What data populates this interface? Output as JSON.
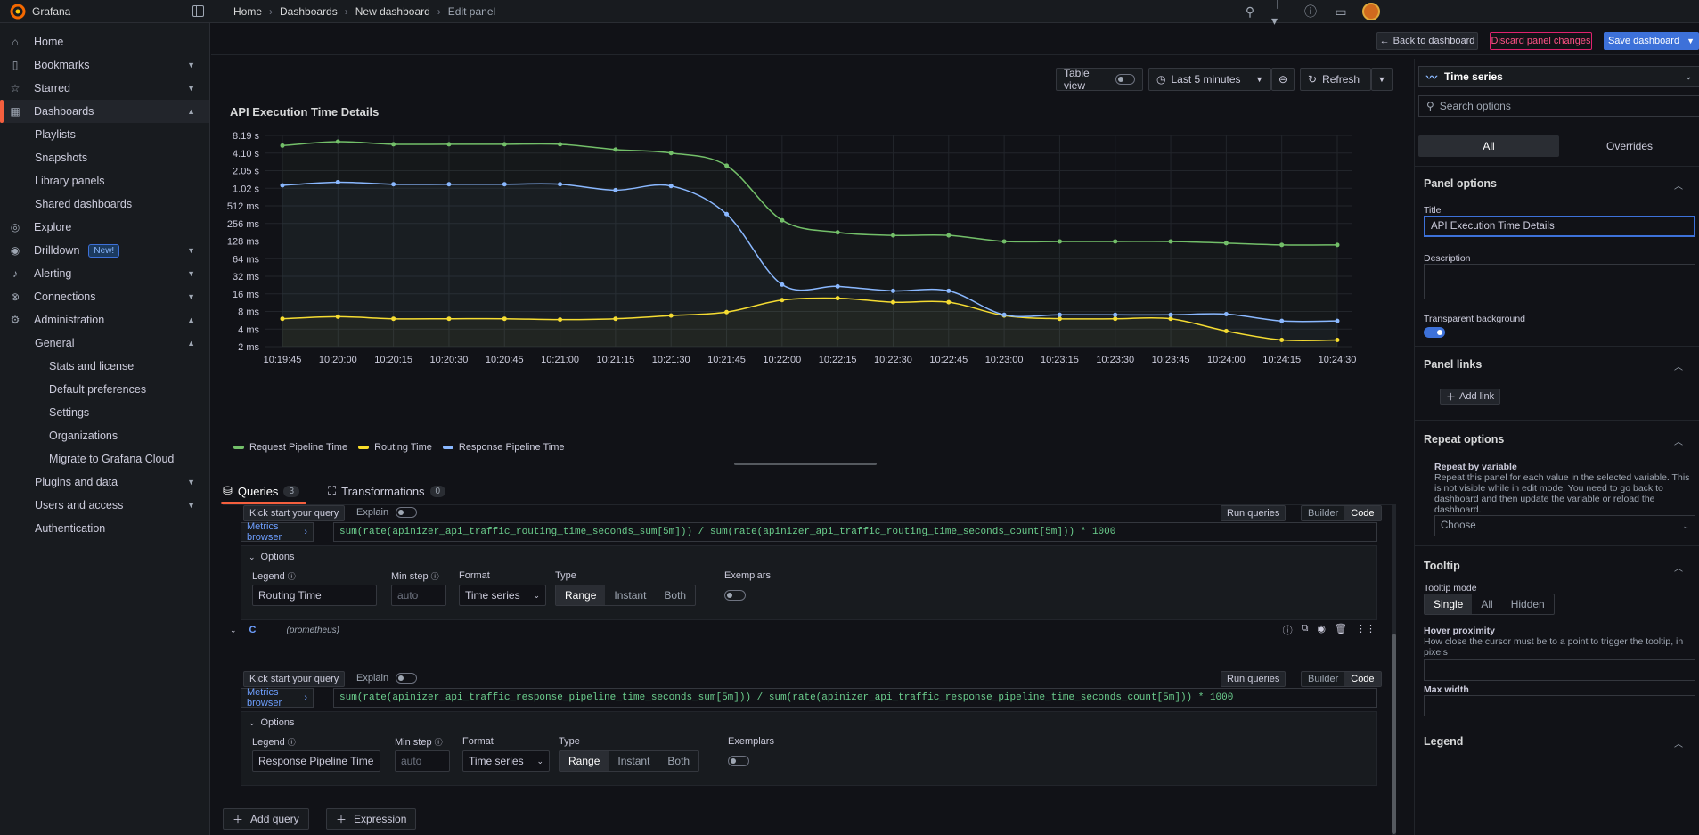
{
  "app": {
    "name": "Grafana"
  },
  "breadcrumbs": [
    "Home",
    "Dashboards",
    "New dashboard",
    "Edit panel"
  ],
  "sidebar": {
    "items": [
      {
        "label": "Home"
      },
      {
        "label": "Bookmarks"
      },
      {
        "label": "Starred"
      },
      {
        "label": "Dashboards"
      },
      {
        "label": "Playlists"
      },
      {
        "label": "Snapshots"
      },
      {
        "label": "Library panels"
      },
      {
        "label": "Shared dashboards"
      },
      {
        "label": "Explore"
      },
      {
        "label": "Drilldown",
        "badge": "New!"
      },
      {
        "label": "Alerting"
      },
      {
        "label": "Connections"
      },
      {
        "label": "Administration"
      },
      {
        "label": "General"
      },
      {
        "label": "Stats and license"
      },
      {
        "label": "Default preferences"
      },
      {
        "label": "Settings"
      },
      {
        "label": "Organizations"
      },
      {
        "label": "Migrate to Grafana Cloud"
      },
      {
        "label": "Plugins and data"
      },
      {
        "label": "Users and access"
      },
      {
        "label": "Authentication"
      }
    ]
  },
  "actions": {
    "back": "Back to dashboard",
    "discard": "Discard panel changes",
    "save": "Save dashboard"
  },
  "toolbar": {
    "table_view": "Table view",
    "time_range": "Last 5 minutes",
    "refresh": "Refresh"
  },
  "panel": {
    "title": "API Execution Time Details"
  },
  "chart_data": {
    "type": "line",
    "title": "API Execution Time Details",
    "y_scale": "log2",
    "y_ticks": [
      "2 ms",
      "4 ms",
      "8 ms",
      "16 ms",
      "32 ms",
      "64 ms",
      "128 ms",
      "256 ms",
      "512 ms",
      "1.02 s",
      "2.05 s",
      "4.10 s",
      "8.19 s"
    ],
    "y_tick_values_ms": [
      2,
      4,
      8,
      16,
      32,
      64,
      128,
      256,
      512,
      1024,
      2048,
      4096,
      8192
    ],
    "x_ticks": [
      "10:19:45",
      "10:20:00",
      "10:20:15",
      "10:20:30",
      "10:20:45",
      "10:21:00",
      "10:21:15",
      "10:21:30",
      "10:21:45",
      "10:22:00",
      "10:22:15",
      "10:22:30",
      "10:22:45",
      "10:23:00",
      "10:23:15",
      "10:23:30",
      "10:23:45",
      "10:24:00",
      "10:24:15",
      "10:24:30"
    ],
    "legend_placement": "bottom-left",
    "grid": true,
    "series": [
      {
        "name": "Request Pipeline Time",
        "color": "#73bf69",
        "points": [
          [
            "10:19:45",
            5500
          ],
          [
            "10:20:00",
            6400
          ],
          [
            "10:20:15",
            5800
          ],
          [
            "10:20:30",
            5800
          ],
          [
            "10:20:45",
            5800
          ],
          [
            "10:21:00",
            5800
          ],
          [
            "10:21:15",
            4700
          ],
          [
            "10:21:30",
            4100
          ],
          [
            "10:21:45",
            2500
          ],
          [
            "10:22:00",
            290
          ],
          [
            "10:22:15",
            180
          ],
          [
            "10:22:30",
            160
          ],
          [
            "10:22:45",
            160
          ],
          [
            "10:23:00",
            126
          ],
          [
            "10:23:15",
            126
          ],
          [
            "10:23:30",
            126
          ],
          [
            "10:23:45",
            126
          ],
          [
            "10:24:00",
            118
          ],
          [
            "10:24:15",
            110
          ],
          [
            "10:24:30",
            110
          ]
        ]
      },
      {
        "name": "Routing Time",
        "color": "#fade2a",
        "points": [
          [
            "10:19:45",
            6
          ],
          [
            "10:20:00",
            6.5
          ],
          [
            "10:20:15",
            6
          ],
          [
            "10:20:30",
            6
          ],
          [
            "10:20:45",
            6
          ],
          [
            "10:21:00",
            5.8
          ],
          [
            "10:21:15",
            6
          ],
          [
            "10:21:30",
            6.8
          ],
          [
            "10:21:45",
            7.8
          ],
          [
            "10:22:00",
            12.5
          ],
          [
            "10:22:15",
            13.5
          ],
          [
            "10:22:30",
            11.5
          ],
          [
            "10:22:45",
            11.5
          ],
          [
            "10:23:00",
            6.8
          ],
          [
            "10:23:15",
            6
          ],
          [
            "10:23:30",
            6
          ],
          [
            "10:23:45",
            6
          ],
          [
            "10:24:00",
            3.7
          ],
          [
            "10:24:15",
            2.6
          ],
          [
            "10:24:30",
            2.6
          ]
        ]
      },
      {
        "name": "Response Pipeline Time",
        "color": "#8ab8ff",
        "points": [
          [
            "10:19:45",
            1150
          ],
          [
            "10:20:00",
            1300
          ],
          [
            "10:20:15",
            1200
          ],
          [
            "10:20:30",
            1200
          ],
          [
            "10:20:45",
            1200
          ],
          [
            "10:21:00",
            1200
          ],
          [
            "10:21:15",
            950
          ],
          [
            "10:21:30",
            1120
          ],
          [
            "10:21:45",
            370
          ],
          [
            "10:22:00",
            23
          ],
          [
            "10:22:15",
            21.5
          ],
          [
            "10:22:30",
            18
          ],
          [
            "10:22:45",
            18
          ],
          [
            "10:23:00",
            7
          ],
          [
            "10:23:15",
            7
          ],
          [
            "10:23:30",
            7
          ],
          [
            "10:23:45",
            7
          ],
          [
            "10:24:00",
            7.2
          ],
          [
            "10:24:15",
            5.5
          ],
          [
            "10:24:30",
            5.5
          ]
        ]
      }
    ]
  },
  "query_tabs": [
    {
      "label": "Queries",
      "count": "3"
    },
    {
      "label": "Transformations",
      "count": "0"
    }
  ],
  "queries": [
    {
      "kick_start": "Kick start your query",
      "explain": "Explain",
      "run": "Run queries",
      "builder": "Builder",
      "code": "Code",
      "metrics_browser": "Metrics browser",
      "expr": "sum(rate(apinizer_api_traffic_routing_time_seconds_sum[5m])) / sum(rate(apinizer_api_traffic_routing_time_seconds_count[5m])) * 1000",
      "options_label": "Options",
      "legend_label": "Legend",
      "legend_value": "Routing Time",
      "minstep_label": "Min step",
      "minstep_placeholder": "auto",
      "format_label": "Format",
      "format_value": "Time series",
      "type_label": "Type",
      "type_options": [
        "Range",
        "Instant",
        "Both"
      ],
      "exemplars_label": "Exemplars"
    },
    {
      "ref": "C",
      "datasource": "(prometheus)",
      "kick_start": "Kick start your query",
      "explain": "Explain",
      "run": "Run queries",
      "builder": "Builder",
      "code": "Code",
      "metrics_browser": "Metrics browser",
      "expr": "sum(rate(apinizer_api_traffic_response_pipeline_time_seconds_sum[5m])) / sum(rate(apinizer_api_traffic_response_pipeline_time_seconds_count[5m])) * 1000",
      "options_label": "Options",
      "legend_label": "Legend",
      "legend_value": "Response Pipeline Time",
      "minstep_label": "Min step",
      "minstep_placeholder": "auto",
      "format_label": "Format",
      "format_value": "Time series",
      "type_label": "Type",
      "type_options": [
        "Range",
        "Instant",
        "Both"
      ],
      "exemplars_label": "Exemplars"
    }
  ],
  "add_query": "Add query",
  "expression": "Expression",
  "options_pane": {
    "viz": "Time series",
    "search_placeholder": "Search options",
    "tabs": [
      "All",
      "Overrides"
    ],
    "panel_options": "Panel options",
    "title_label": "Title",
    "title_value": "API Execution Time Details",
    "description_label": "Description",
    "transparent_label": "Transparent background",
    "panel_links": "Panel links",
    "add_link": "Add link",
    "repeat_options": "Repeat options",
    "repeat_by_variable": "Repeat by variable",
    "repeat_desc": "Repeat this panel for each value in the selected variable. This is not visible while in edit mode. You need to go back to dashboard and then update the variable or reload the dashboard.",
    "choose": "Choose",
    "tooltip": "Tooltip",
    "tooltip_mode": "Tooltip mode",
    "tooltip_modes": [
      "Single",
      "All",
      "Hidden"
    ],
    "hover_proximity": "Hover proximity",
    "hover_desc": "How close the cursor must be to a point to trigger the tooltip, in pixels",
    "max_width": "Max width",
    "legend": "Legend"
  }
}
